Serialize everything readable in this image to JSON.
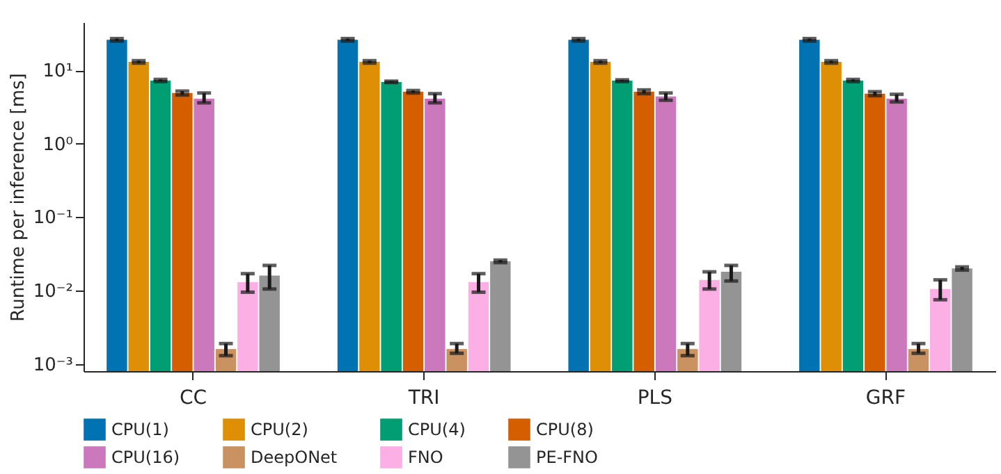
{
  "chart_data": {
    "type": "bar",
    "ylabel": "Runtime per inference [ms]",
    "categories": [
      "CC",
      "TRI",
      "PLS",
      "GRF"
    ],
    "log": "y",
    "ylim": [
      0.0008,
      45
    ],
    "yticks": [
      {
        "value": 0.001,
        "label": "10⁻³"
      },
      {
        "value": 0.01,
        "label": "10⁻²"
      },
      {
        "value": 0.1,
        "label": "10⁻¹"
      },
      {
        "value": 1,
        "label": "10⁰"
      },
      {
        "value": 10,
        "label": "10¹"
      }
    ],
    "legend": "bottom",
    "grid": false,
    "series": [
      {
        "name": "CPU(1)",
        "color": "#0173b2",
        "values": [
          26,
          26,
          26,
          26
        ],
        "errors": [
          [
            25,
            27
          ],
          [
            25,
            27
          ],
          [
            25,
            27
          ],
          [
            25,
            27
          ]
        ]
      },
      {
        "name": "CPU(2)",
        "color": "#de8f05",
        "values": [
          13,
          13,
          13,
          13
        ],
        "errors": [
          [
            12.5,
            13.5
          ],
          [
            12.5,
            13.5
          ],
          [
            12.5,
            13.5
          ],
          [
            12.5,
            13.5
          ]
        ]
      },
      {
        "name": "CPU(4)",
        "color": "#029e73",
        "values": [
          7.2,
          6.9,
          7.2,
          7.2
        ],
        "errors": [
          [
            7,
            7.5
          ],
          [
            6.8,
            7.1
          ],
          [
            7,
            7.4
          ],
          [
            7,
            7.5
          ]
        ]
      },
      {
        "name": "CPU(8)",
        "color": "#d55e00",
        "values": [
          4.9,
          5.1,
          5.1,
          4.8
        ],
        "errors": [
          [
            4.6,
            5.2
          ],
          [
            4.9,
            5.3
          ],
          [
            4.8,
            5.4
          ],
          [
            4.5,
            5.1
          ]
        ]
      },
      {
        "name": "CPU(16)",
        "color": "#cc78bc",
        "values": [
          4.1,
          4.1,
          4.4,
          4.1
        ],
        "errors": [
          [
            3.6,
            4.9
          ],
          [
            3.6,
            4.8
          ],
          [
            3.9,
            4.9
          ],
          [
            3.7,
            4.7
          ]
        ]
      },
      {
        "name": "DeepONet",
        "color": "#ca9161",
        "values": [
          0.0016,
          0.0016,
          0.0016,
          0.0016
        ],
        "errors": [
          [
            0.0013,
            0.0019
          ],
          [
            0.0014,
            0.0019
          ],
          [
            0.0013,
            0.0019
          ],
          [
            0.0014,
            0.0019
          ]
        ]
      },
      {
        "name": "FNO",
        "color": "#fbafe4",
        "values": [
          0.013,
          0.013,
          0.014,
          0.0105
        ],
        "errors": [
          [
            0.0095,
            0.017
          ],
          [
            0.0095,
            0.017
          ],
          [
            0.0105,
            0.018
          ],
          [
            0.0075,
            0.014
          ]
        ]
      },
      {
        "name": "PE-FNO",
        "color": "#949494",
        "values": [
          0.016,
          0.025,
          0.018,
          0.02
        ],
        "errors": [
          [
            0.0105,
            0.022
          ],
          [
            0.024,
            0.026
          ],
          [
            0.0135,
            0.022
          ],
          [
            0.019,
            0.021
          ]
        ]
      }
    ]
  }
}
